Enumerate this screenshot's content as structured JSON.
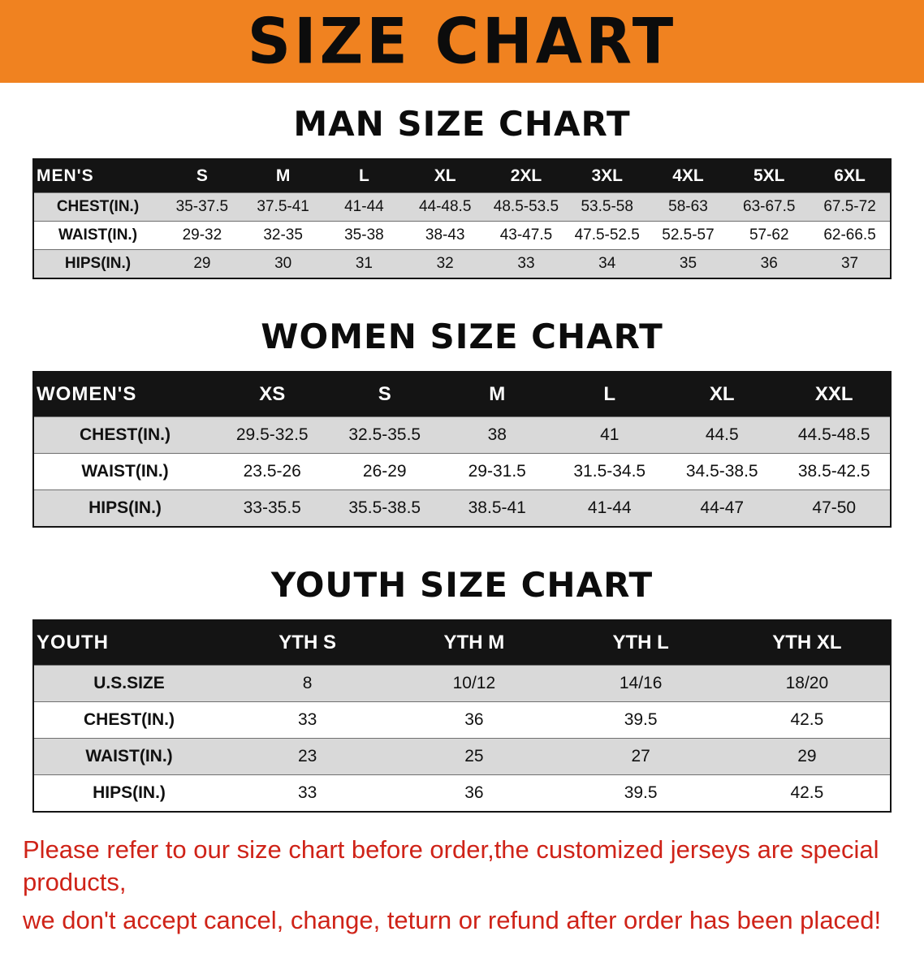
{
  "banner": {
    "title": "SIZE CHART"
  },
  "colors": {
    "banner_bg": "#f08220",
    "table_header_bg": "#141414",
    "row_shade": "#d9d9d9",
    "notice_text": "#cf2318"
  },
  "sections": [
    {
      "id": "men",
      "heading": "MAN SIZE CHART",
      "table": {
        "header": [
          "MEN'S",
          "S",
          "M",
          "L",
          "XL",
          "2XL",
          "3XL",
          "4XL",
          "5XL",
          "6XL"
        ],
        "rows": [
          [
            "CHEST(IN.)",
            "35-37.5",
            "37.5-41",
            "41-44",
            "44-48.5",
            "48.5-53.5",
            "53.5-58",
            "58-63",
            "63-67.5",
            "67.5-72"
          ],
          [
            "WAIST(IN.)",
            "29-32",
            "32-35",
            "35-38",
            "38-43",
            "43-47.5",
            "47.5-52.5",
            "52.5-57",
            "57-62",
            "62-66.5"
          ],
          [
            "HIPS(IN.)",
            "29",
            "30",
            "31",
            "32",
            "33",
            "34",
            "35",
            "36",
            "37"
          ]
        ]
      }
    },
    {
      "id": "women",
      "heading": "WOMEN SIZE CHART",
      "table": {
        "header": [
          "WOMEN'S",
          "XS",
          "S",
          "M",
          "L",
          "XL",
          "XXL"
        ],
        "rows": [
          [
            "CHEST(IN.)",
            "29.5-32.5",
            "32.5-35.5",
            "38",
            "41",
            "44.5",
            "44.5-48.5"
          ],
          [
            "WAIST(IN.)",
            "23.5-26",
            "26-29",
            "29-31.5",
            "31.5-34.5",
            "34.5-38.5",
            "38.5-42.5"
          ],
          [
            "HIPS(IN.)",
            "33-35.5",
            "35.5-38.5",
            "38.5-41",
            "41-44",
            "44-47",
            "47-50"
          ]
        ]
      }
    },
    {
      "id": "youth",
      "heading": "YOUTH SIZE CHART",
      "table": {
        "header": [
          "YOUTH",
          "YTH S",
          "YTH M",
          "YTH L",
          "YTH XL"
        ],
        "rows": [
          [
            "U.S.SIZE",
            "8",
            "10/12",
            "14/16",
            "18/20"
          ],
          [
            "CHEST(IN.)",
            "33",
            "36",
            "39.5",
            "42.5"
          ],
          [
            "WAIST(IN.)",
            "23",
            "25",
            "27",
            "29"
          ],
          [
            "HIPS(IN.)",
            "33",
            "36",
            "39.5",
            "42.5"
          ]
        ]
      }
    }
  ],
  "notice": {
    "lines": [
      "Please refer to our size chart before order,the customized jerseys are special products,",
      "we don't accept cancel, change, teturn or refund after order has been placed!"
    ]
  }
}
